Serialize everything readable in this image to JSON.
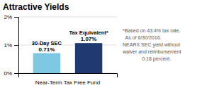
{
  "chart_data": {
    "type": "bar",
    "title": "Attractive Yields",
    "categories": [
      "30-Day SEC",
      "Tax Equivalent*"
    ],
    "values": [
      0.71,
      1.07
    ],
    "value_labels": [
      "0.71%",
      "1.07%"
    ],
    "data_labels": true,
    "colors": [
      "#7ec8e3",
      "#1e3a6e"
    ],
    "xlabel": "Near-Term Tax Free Fund",
    "ylim": [
      0,
      2.0
    ],
    "yticks": [
      {
        "value": 0,
        "label": "0%"
      },
      {
        "value": 1,
        "label": "1%"
      },
      {
        "value": 2,
        "label": "2%"
      }
    ],
    "grid": true,
    "tick_labels": "y",
    "annotation": "*Based on 43.4% tax rate.\n  As of 6/30/2016.\nNEARX SEC yield without\nwaiver and reimbursement\n              0.18 percent."
  }
}
